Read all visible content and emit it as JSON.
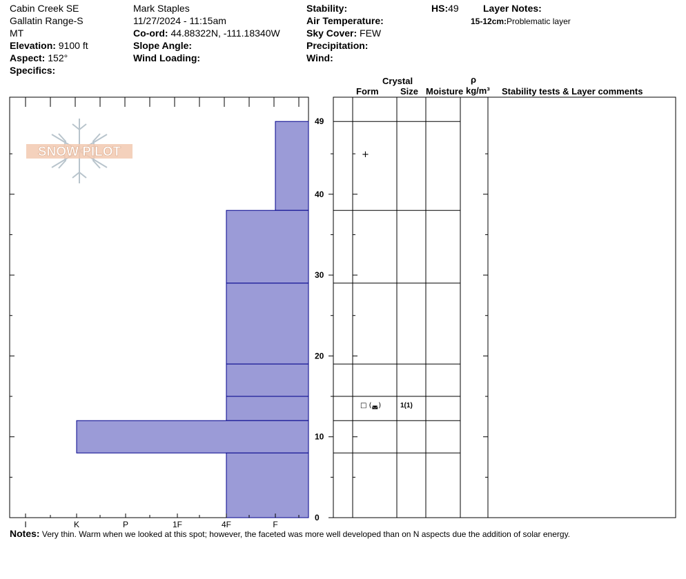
{
  "header": {
    "location": "Cabin Creek SE",
    "range": "Gallatin Range-S",
    "state": "MT",
    "elevation_label": "Elevation:",
    "elevation_value": "9100 ft",
    "aspect_label": "Aspect:",
    "aspect_value": "152°",
    "specifics_label": "Specifics:",
    "observer": "Mark Staples",
    "datetime": "11/27/2024 - 11:15am",
    "coord_label": "Co-ord:",
    "coord_value": "44.88322N, -111.18340W",
    "slope_label": "Slope Angle:",
    "wind_loading_label": "Wind Loading:",
    "stability_label": "Stability:",
    "air_temp_label": "Air Temperature:",
    "sky_label": "Sky Cover:",
    "sky_value": "FEW",
    "precip_label": "Precipitation:",
    "wind_label": "Wind:",
    "hs_label": "HS:",
    "hs_value": "49",
    "layer_notes_label": "Layer Notes:",
    "layer_note_range": "15-12cm:",
    "layer_note_text": "Problematic layer"
  },
  "logo": {
    "text": "SNOW PILOT"
  },
  "columns": {
    "crystal": "Crystal",
    "form": "Form",
    "size": "Size",
    "moisture": "Moisture",
    "rho": "ρ",
    "density_unit": "kg/m³",
    "stability": "Stability tests & Layer comments"
  },
  "layer_symbols": {
    "form_45": "+",
    "form_13": "□ (◛)",
    "size_13": "1(1)"
  },
  "colors": {
    "layer_fill": "#9b9bd7",
    "layer_line": "#00008b"
  },
  "notes": {
    "label": "Notes:",
    "text": "Very thin. Warm when we looked at this spot; however, the faceted was more well developed than on N aspects due the addition of solar energy."
  },
  "chart_data": {
    "type": "bar",
    "subtype": "snow-profile-hand-hardness",
    "y_axis": {
      "min": 0,
      "max": 49,
      "tick_labels": [
        "0",
        "10",
        "20",
        "30",
        "40",
        "49"
      ],
      "unit": "cm"
    },
    "x_axis": {
      "categories": [
        "I",
        "K",
        "P",
        "1F",
        "4F",
        "F"
      ],
      "reversed": true
    },
    "layers": [
      {
        "top": 49,
        "bottom": 38,
        "hardness": "F"
      },
      {
        "top": 38,
        "bottom": 29,
        "hardness": "4F"
      },
      {
        "top": 29,
        "bottom": 19,
        "hardness": "4F"
      },
      {
        "top": 19,
        "bottom": 15,
        "hardness": "4F"
      },
      {
        "top": 15,
        "bottom": 12,
        "hardness": "4F"
      },
      {
        "top": 12,
        "bottom": 8,
        "hardness": "K"
      },
      {
        "top": 8,
        "bottom": 0,
        "hardness": "4F"
      }
    ]
  }
}
